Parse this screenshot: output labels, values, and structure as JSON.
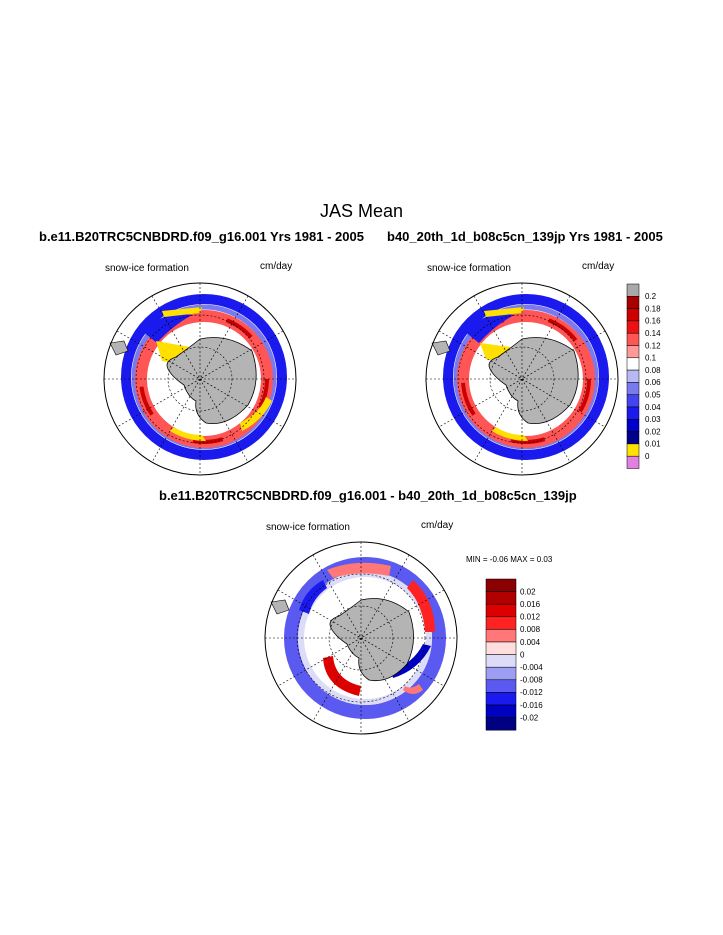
{
  "title": "JAS Mean",
  "panel_left": {
    "case": "b.e11.B20TRC5CNBDRD.f09_g16.001  Yrs 1981 - 2005",
    "variable": "snow-ice formation",
    "units": "cm/day"
  },
  "panel_right": {
    "case": "b40_20th_1d_b08c5cn_139jp  Yrs 1981 - 2005",
    "variable": "snow-ice formation",
    "units": "cm/day"
  },
  "panel_diff": {
    "case": "b.e11.B20TRC5CNBDRD.f09_g16.001 - b40_20th_1d_b08c5cn_139jp",
    "variable": "snow-ice formation",
    "units": "cm/day",
    "min_label": "MIN =",
    "min_value": "-0.06",
    "max_label": "MAX =",
    "max_value": "0.03"
  },
  "colorbar_main": {
    "labels": [
      "0.2",
      "0.18",
      "0.16",
      "0.14",
      "0.12",
      "0.1",
      "0.08",
      "0.06",
      "0.05",
      "0.04",
      "0.03",
      "0.02",
      "0.01",
      "0"
    ],
    "colors": [
      "#a9a9a9",
      "#a80000",
      "#cc0000",
      "#ee1111",
      "#ff5555",
      "#ff9999",
      "#ffffff",
      "#b8b8f4",
      "#7a7af0",
      "#4444ee",
      "#1a1aee",
      "#0000cc",
      "#00008b",
      "#ffe000",
      "#e080e0"
    ]
  },
  "colorbar_diff": {
    "labels": [
      "0.02",
      "0.016",
      "0.012",
      "0.008",
      "0.004",
      "0",
      "-0.004",
      "-0.008",
      "-0.012",
      "-0.016",
      "-0.02"
    ],
    "colors": [
      "#8b0000",
      "#b00000",
      "#dd0000",
      "#ff2222",
      "#ff7777",
      "#ffdddd",
      "#dcdcf8",
      "#9d9df4",
      "#5a5af0",
      "#1a1aee",
      "#0000c0",
      "#000080"
    ]
  }
}
